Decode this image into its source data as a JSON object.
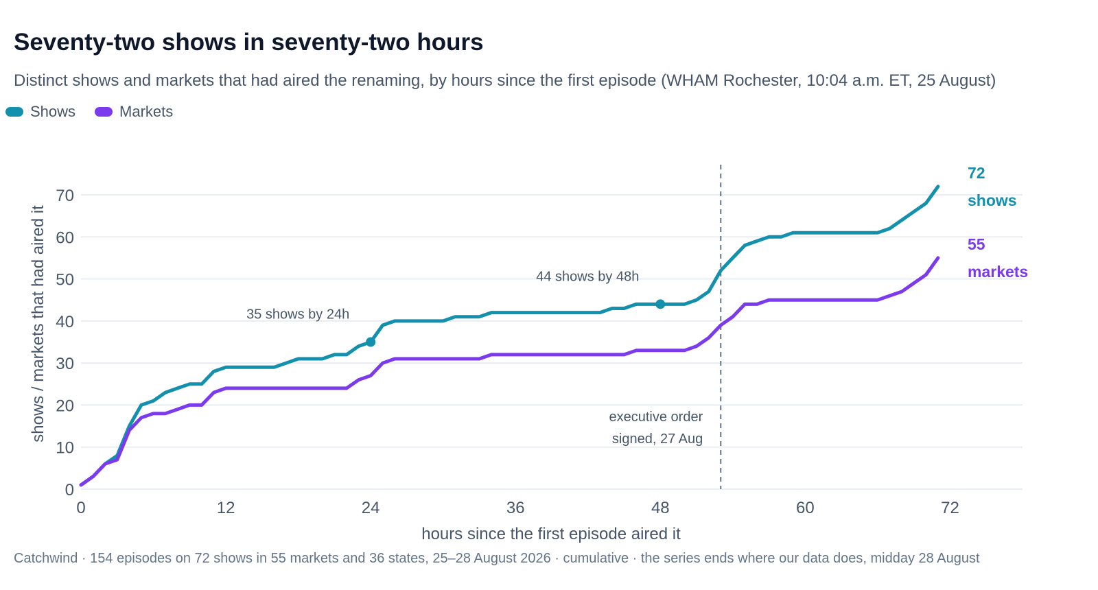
{
  "title": "Seventy-two shows in seventy-two hours",
  "subtitle": "Distinct shows and markets that had aired the renaming, by hours since the first episode (WHAM Rochester, 10:04 a.m. ET, 25 August)",
  "footer": "Catchwind · 154 episodes on 72 shows in 55 markets and 36 states, 25–28 August 2026 · cumulative · the series ends where our data does, midday 28 August",
  "colors": {
    "shows": "#1390ac",
    "markets": "#7c3aed",
    "grid": "#e2e8f0",
    "annotation_line": "#64748b"
  },
  "chart_data": {
    "type": "line",
    "title": "Seventy-two shows in seventy-two hours",
    "xlabel": "hours since the first episode aired it",
    "ylabel": "shows / markets that had aired it",
    "xlim": [
      0,
      78
    ],
    "ylim": [
      0,
      78
    ],
    "x_ticks": [
      0,
      12,
      24,
      36,
      48,
      60,
      72
    ],
    "y_ticks": [
      0,
      10,
      20,
      30,
      40,
      50,
      60,
      70
    ],
    "grid": "horizontal",
    "legend": "top-left",
    "series": [
      {
        "name": "Shows",
        "key": "shows",
        "end_label": [
          "72",
          "shows"
        ],
        "points": [
          [
            0,
            1
          ],
          [
            1,
            3
          ],
          [
            2,
            6
          ],
          [
            3,
            8
          ],
          [
            4,
            15
          ],
          [
            5,
            20
          ],
          [
            6,
            21
          ],
          [
            7,
            23
          ],
          [
            8,
            24
          ],
          [
            9,
            25
          ],
          [
            10,
            25
          ],
          [
            11,
            28
          ],
          [
            12,
            29
          ],
          [
            13,
            29
          ],
          [
            14,
            29
          ],
          [
            15,
            29
          ],
          [
            16,
            29
          ],
          [
            17,
            30
          ],
          [
            18,
            31
          ],
          [
            19,
            31
          ],
          [
            20,
            31
          ],
          [
            21,
            32
          ],
          [
            22,
            32
          ],
          [
            23,
            34
          ],
          [
            24,
            35
          ],
          [
            25,
            39
          ],
          [
            26,
            40
          ],
          [
            27,
            40
          ],
          [
            28,
            40
          ],
          [
            29,
            40
          ],
          [
            30,
            40
          ],
          [
            31,
            41
          ],
          [
            32,
            41
          ],
          [
            33,
            41
          ],
          [
            34,
            42
          ],
          [
            35,
            42
          ],
          [
            36,
            42
          ],
          [
            37,
            42
          ],
          [
            38,
            42
          ],
          [
            39,
            42
          ],
          [
            40,
            42
          ],
          [
            41,
            42
          ],
          [
            42,
            42
          ],
          [
            43,
            42
          ],
          [
            44,
            43
          ],
          [
            45,
            43
          ],
          [
            46,
            44
          ],
          [
            47,
            44
          ],
          [
            48,
            44
          ],
          [
            49,
            44
          ],
          [
            50,
            44
          ],
          [
            51,
            45
          ],
          [
            52,
            47
          ],
          [
            53,
            52
          ],
          [
            54,
            55
          ],
          [
            55,
            58
          ],
          [
            56,
            59
          ],
          [
            57,
            60
          ],
          [
            58,
            60
          ],
          [
            59,
            61
          ],
          [
            60,
            61
          ],
          [
            61,
            61
          ],
          [
            62,
            61
          ],
          [
            63,
            61
          ],
          [
            64,
            61
          ],
          [
            65,
            61
          ],
          [
            66,
            61
          ],
          [
            67,
            62
          ],
          [
            68,
            64
          ],
          [
            69,
            66
          ],
          [
            70,
            68
          ],
          [
            71,
            72
          ]
        ]
      },
      {
        "name": "Markets",
        "key": "markets",
        "end_label": [
          "55",
          "markets"
        ],
        "points": [
          [
            0,
            1
          ],
          [
            1,
            3
          ],
          [
            2,
            6
          ],
          [
            3,
            7
          ],
          [
            4,
            14
          ],
          [
            5,
            17
          ],
          [
            6,
            18
          ],
          [
            7,
            18
          ],
          [
            8,
            19
          ],
          [
            9,
            20
          ],
          [
            10,
            20
          ],
          [
            11,
            23
          ],
          [
            12,
            24
          ],
          [
            13,
            24
          ],
          [
            14,
            24
          ],
          [
            15,
            24
          ],
          [
            16,
            24
          ],
          [
            17,
            24
          ],
          [
            18,
            24
          ],
          [
            19,
            24
          ],
          [
            20,
            24
          ],
          [
            21,
            24
          ],
          [
            22,
            24
          ],
          [
            23,
            26
          ],
          [
            24,
            27
          ],
          [
            25,
            30
          ],
          [
            26,
            31
          ],
          [
            27,
            31
          ],
          [
            28,
            31
          ],
          [
            29,
            31
          ],
          [
            30,
            31
          ],
          [
            31,
            31
          ],
          [
            32,
            31
          ],
          [
            33,
            31
          ],
          [
            34,
            32
          ],
          [
            35,
            32
          ],
          [
            36,
            32
          ],
          [
            37,
            32
          ],
          [
            38,
            32
          ],
          [
            39,
            32
          ],
          [
            40,
            32
          ],
          [
            41,
            32
          ],
          [
            42,
            32
          ],
          [
            43,
            32
          ],
          [
            44,
            32
          ],
          [
            45,
            32
          ],
          [
            46,
            33
          ],
          [
            47,
            33
          ],
          [
            48,
            33
          ],
          [
            49,
            33
          ],
          [
            50,
            33
          ],
          [
            51,
            34
          ],
          [
            52,
            36
          ],
          [
            53,
            39
          ],
          [
            54,
            41
          ],
          [
            55,
            44
          ],
          [
            56,
            44
          ],
          [
            57,
            45
          ],
          [
            58,
            45
          ],
          [
            59,
            45
          ],
          [
            60,
            45
          ],
          [
            61,
            45
          ],
          [
            62,
            45
          ],
          [
            63,
            45
          ],
          [
            64,
            45
          ],
          [
            65,
            45
          ],
          [
            66,
            45
          ],
          [
            67,
            46
          ],
          [
            68,
            47
          ],
          [
            69,
            49
          ],
          [
            70,
            51
          ],
          [
            71,
            55
          ]
        ]
      }
    ],
    "markers": [
      {
        "series": "shows",
        "x": 24,
        "y": 35,
        "label": "35 shows by 24h"
      },
      {
        "series": "shows",
        "x": 48,
        "y": 44,
        "label": "44 shows by 48h"
      }
    ],
    "vline": {
      "x": 53,
      "label": [
        "executive order",
        "signed, 27 Aug"
      ]
    }
  }
}
